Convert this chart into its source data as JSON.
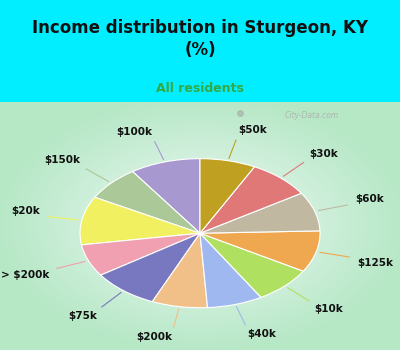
{
  "title": "Income distribution in Sturgeon, KY\n(%)",
  "subtitle": "All residents",
  "title_color": "#111111",
  "subtitle_color": "#33aa44",
  "cyan_color": "#00eeff",
  "chart_bg_outer": "#b8e8c8",
  "chart_bg_inner": "#f0f8f8",
  "labels": [
    "$100k",
    "$150k",
    "$20k",
    "> $200k",
    "$75k",
    "$200k",
    "$40k",
    "$10k",
    "$125k",
    "$60k",
    "$30k",
    "$50k"
  ],
  "values": [
    9.5,
    7.5,
    10.5,
    7.0,
    9.0,
    7.5,
    7.5,
    8.0,
    9.0,
    8.5,
    8.5,
    7.5
  ],
  "colors": [
    "#a898d0",
    "#aac898",
    "#f0f060",
    "#f0a0b0",
    "#7878c0",
    "#f0c088",
    "#a0b8f0",
    "#b0e060",
    "#f0a850",
    "#c0b8a0",
    "#e07878",
    "#c0a020"
  ],
  "startangle": 90,
  "figsize": [
    4.0,
    3.5
  ],
  "dpi": 100,
  "title_fontsize": 12,
  "subtitle_fontsize": 9,
  "label_fontsize": 7.5
}
